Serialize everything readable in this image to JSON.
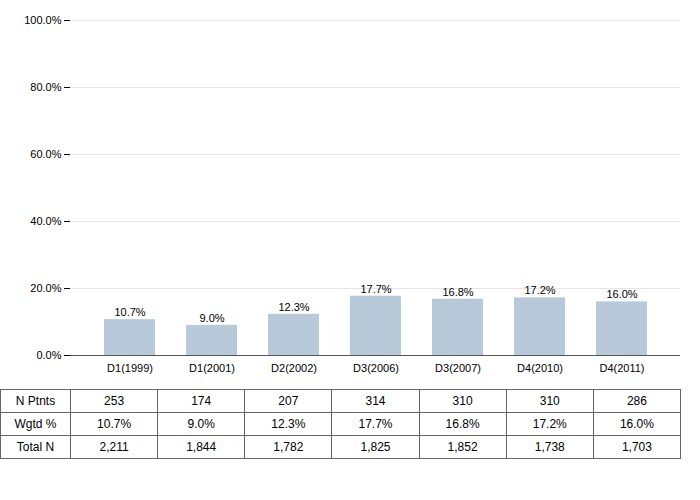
{
  "chart_data": {
    "type": "bar",
    "categories": [
      "D1(1999)",
      "D1(2001)",
      "D2(2002)",
      "D3(2006)",
      "D3(2007)",
      "D4(2010)",
      "D4(2011)"
    ],
    "values": [
      10.7,
      9.0,
      12.3,
      17.7,
      16.8,
      17.2,
      16.0
    ],
    "value_labels": [
      "10.7%",
      "9.0%",
      "12.3%",
      "17.7%",
      "16.8%",
      "17.2%",
      "16.0%"
    ],
    "data_labels": true,
    "color": "#b8c9d9",
    "ylim": [
      0,
      100
    ],
    "yticks": [
      {
        "value": 0,
        "label": "0.0%"
      },
      {
        "value": 20,
        "label": "20.0%"
      },
      {
        "value": 40,
        "label": "40.0%"
      },
      {
        "value": 60,
        "label": "60.0%"
      },
      {
        "value": 80,
        "label": "80.0%"
      },
      {
        "value": 100,
        "label": "100.0%"
      }
    ],
    "grid": true,
    "table": {
      "rows": [
        {
          "label": "N Ptnts",
          "cells": [
            "253",
            "174",
            "207",
            "314",
            "310",
            "310",
            "286"
          ]
        },
        {
          "label": "Wgtd %",
          "cells": [
            "10.7%",
            "9.0%",
            "12.3%",
            "17.7%",
            "16.8%",
            "17.2%",
            "16.0%"
          ]
        },
        {
          "label": "Total N",
          "cells": [
            "2,211",
            "1,844",
            "1,782",
            "1,825",
            "1,852",
            "1,738",
            "1,703"
          ]
        }
      ]
    }
  }
}
